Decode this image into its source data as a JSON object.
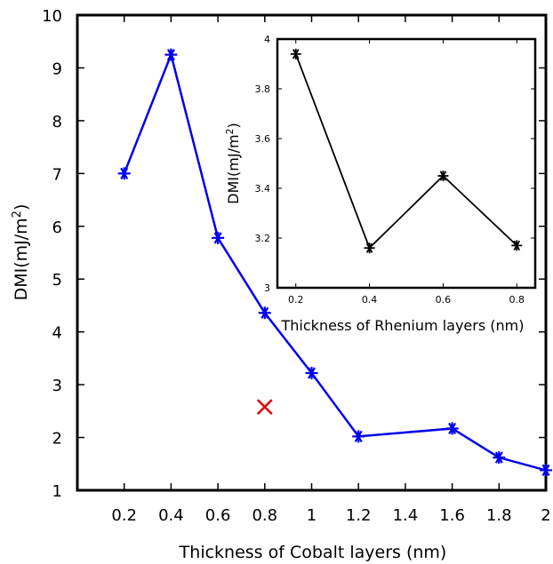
{
  "chart_data": [
    {
      "type": "line",
      "xlabel": "Thickness of Cobalt layers (nm)",
      "ylabel": "DMI(mJ/m",
      "ylabel_sup": "2",
      "ylabel_end": ")",
      "xlim": [
        0,
        2.0
      ],
      "ylim": [
        1,
        10
      ],
      "x_ticks": [
        "0.2",
        "0.4",
        "0.6",
        "0.8",
        "1",
        "1.2",
        "1.4",
        "1.6",
        "1.8",
        "2"
      ],
      "y_ticks": [
        "1",
        "2",
        "3",
        "4",
        "5",
        "6",
        "7",
        "8",
        "9",
        "10"
      ],
      "grid": false,
      "series": [
        {
          "color": "#0000ee",
          "marker": "asterisk",
          "x": [
            0.2,
            0.4,
            0.6,
            0.8,
            1.0,
            1.2,
            1.6,
            1.8,
            2.0
          ],
          "y": [
            7.0,
            9.25,
            5.78,
            4.36,
            3.22,
            2.02,
            2.17,
            1.62,
            1.38
          ]
        }
      ],
      "annotations": [
        {
          "type": "cross-marker",
          "color": "#e00000",
          "x": 0.8,
          "y": 2.58
        }
      ]
    },
    {
      "type": "line",
      "xlabel": "Thickness of Rhenium layers (nm)",
      "ylabel": "DMI(mJ/m",
      "ylabel_sup": "2",
      "ylabel_end": ")",
      "xlim": [
        0.15,
        0.85
      ],
      "ylim": [
        3.0,
        4.0
      ],
      "x_ticks": [
        "0.2",
        "0.4",
        "0.6",
        "0.8"
      ],
      "y_ticks": [
        "3",
        "3.2",
        "3.4",
        "3.6",
        "3.8",
        "4"
      ],
      "grid": false,
      "series": [
        {
          "color": "#000000",
          "marker": "asterisk",
          "x": [
            0.2,
            0.4,
            0.6,
            0.8
          ],
          "y": [
            3.94,
            3.16,
            3.45,
            3.17
          ]
        }
      ]
    }
  ]
}
